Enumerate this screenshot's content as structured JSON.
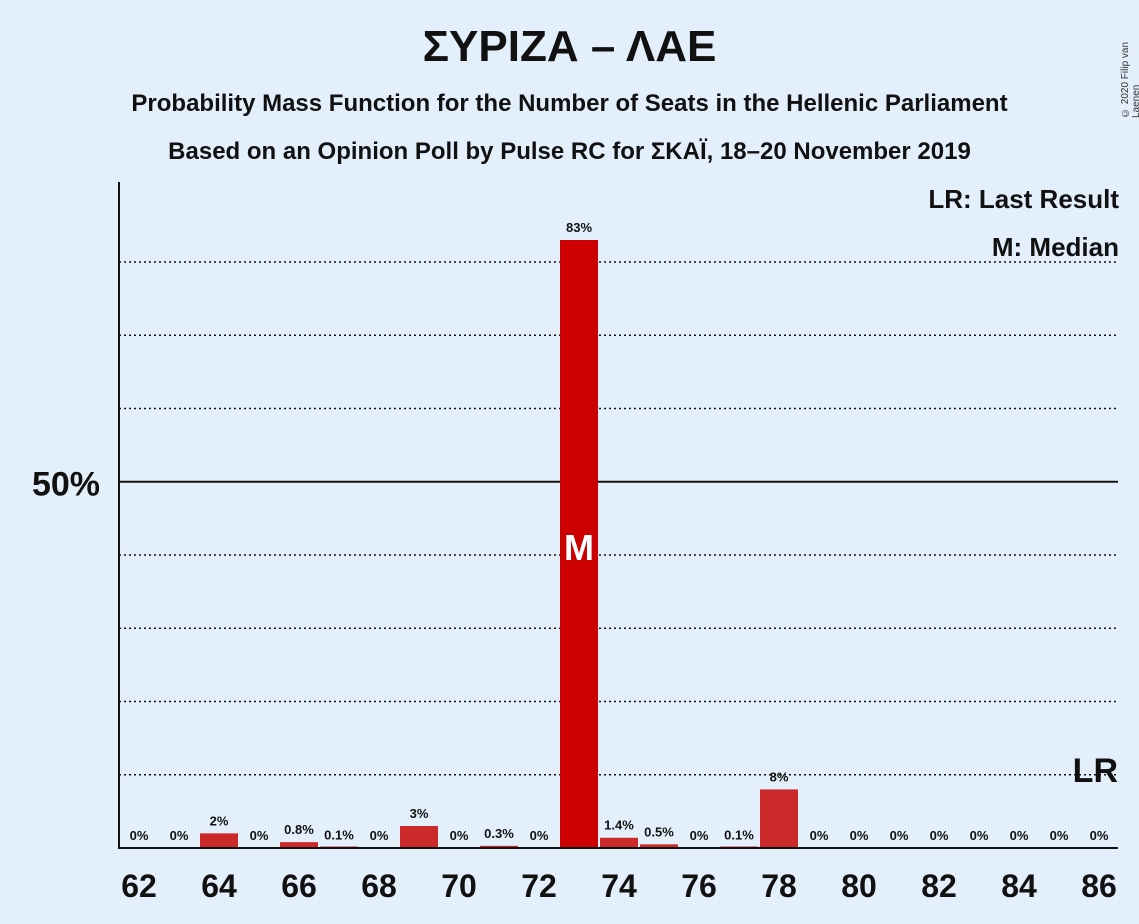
{
  "title": "ΣΥΡΙΖΑ – ΛΑΕ",
  "subtitle1": "Probability Mass Function for the Number of Seats in the Hellenic Parliament",
  "subtitle2": "Based on an Opinion Poll by Pulse RC for ΣΚΑΪ, 18–20 November 2019",
  "copyright": "© 2020 Filip van Laenen",
  "legend": {
    "last_result": "LR: Last Result",
    "median": "M: Median"
  },
  "colors": {
    "background": "#e3f0fc",
    "bar": "#cc0000",
    "bar_alt": "#cc2a2a",
    "text": "#111111"
  },
  "chart_data": {
    "type": "bar",
    "x": [
      62,
      63,
      64,
      65,
      66,
      67,
      68,
      69,
      70,
      71,
      72,
      73,
      74,
      75,
      76,
      77,
      78,
      79,
      80,
      81,
      82,
      83,
      84,
      85,
      86
    ],
    "values": [
      0,
      0,
      2,
      0,
      0.8,
      0.1,
      0,
      3,
      0,
      0.3,
      0,
      83,
      1.4,
      0.5,
      0,
      0.1,
      8,
      0,
      0,
      0,
      0,
      0,
      0,
      0,
      0
    ],
    "labels": [
      "0%",
      "0%",
      "2%",
      "0%",
      "0.8%",
      "0.1%",
      "0%",
      "3%",
      "0%",
      "0.3%",
      "0%",
      "83%",
      "1.4%",
      "0.5%",
      "0%",
      "0.1%",
      "8%",
      "0%",
      "0%",
      "0%",
      "0%",
      "0%",
      "0%",
      "0%",
      "0%"
    ],
    "x_tick_labels": [
      "62",
      "64",
      "66",
      "68",
      "70",
      "72",
      "74",
      "76",
      "78",
      "80",
      "82",
      "84",
      "86"
    ],
    "y_tick_label": "50%",
    "ylim": [
      0,
      90
    ],
    "gridlines": [
      10,
      20,
      30,
      40,
      50,
      60,
      70,
      80
    ],
    "median_seat": 73,
    "median_marker": "M",
    "last_result_seat": 86,
    "last_result_marker": "LR"
  }
}
